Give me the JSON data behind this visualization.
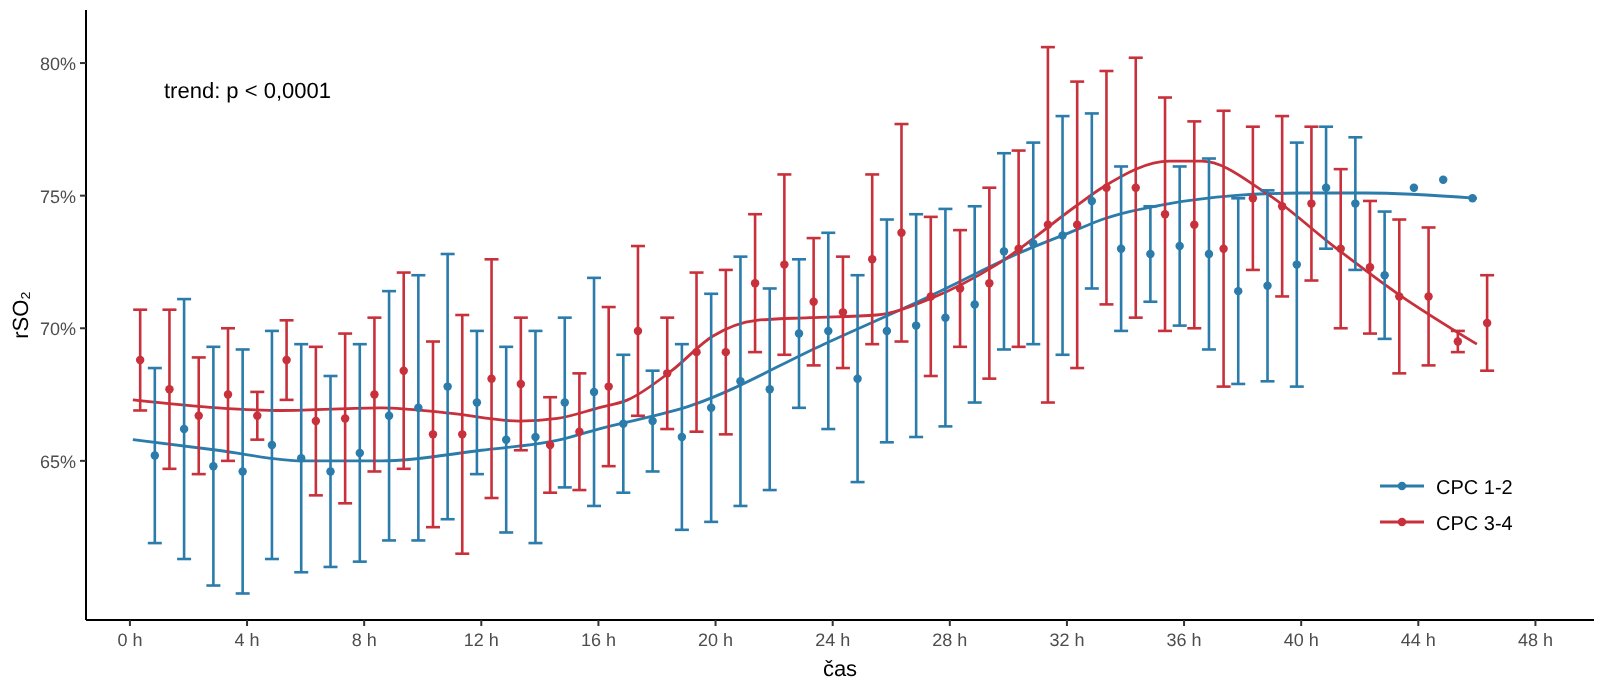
{
  "chart_data": {
    "type": "scatter",
    "xlabel": "čas",
    "ylabel": "rSO₂",
    "annotations": [
      "trend: p < 0,0001"
    ],
    "xlim": [
      -1.5,
      50
    ],
    "ylim": [
      59,
      82
    ],
    "xticks": [
      {
        "value": 0,
        "label": "0 h"
      },
      {
        "value": 4,
        "label": "4 h"
      },
      {
        "value": 8,
        "label": "8 h"
      },
      {
        "value": 12,
        "label": "12 h"
      },
      {
        "value": 16,
        "label": "16 h"
      },
      {
        "value": 20,
        "label": "20 h"
      },
      {
        "value": 24,
        "label": "24 h"
      },
      {
        "value": 28,
        "label": "28 h"
      },
      {
        "value": 32,
        "label": "32 h"
      },
      {
        "value": 36,
        "label": "36 h"
      },
      {
        "value": 40,
        "label": "40 h"
      },
      {
        "value": 44,
        "label": "44 h"
      },
      {
        "value": 48,
        "label": "48 h"
      }
    ],
    "yticks": [
      {
        "value": 65,
        "label": "65%"
      },
      {
        "value": 70,
        "label": "70%"
      },
      {
        "value": 75,
        "label": "75%"
      },
      {
        "value": 80,
        "label": "80%"
      }
    ],
    "grid": false,
    "legend": "bottom right",
    "marker": "circle",
    "series": [
      {
        "name": "CPC 1-2",
        "color": "#2b7bab",
        "x": [
          0.85,
          1.85,
          2.85,
          3.85,
          4.85,
          5.85,
          6.85,
          7.85,
          8.85,
          9.85,
          10.85,
          11.85,
          12.85,
          13.85,
          14.85,
          15.85,
          16.85,
          17.85,
          18.85,
          19.85,
          20.85,
          21.85,
          22.85,
          23.85,
          24.85,
          25.85,
          26.85,
          27.85,
          28.85,
          29.85,
          30.85,
          31.85,
          32.85,
          33.85,
          34.85,
          35.85,
          36.85,
          37.85,
          38.85,
          39.85,
          40.85,
          41.85,
          42.85,
          43.85,
          44.85,
          45.85
        ],
        "values": [
          65.2,
          66.2,
          64.8,
          64.6,
          65.6,
          65.1,
          64.6,
          65.3,
          66.7,
          67.0,
          67.8,
          67.2,
          65.8,
          65.9,
          67.2,
          67.6,
          66.4,
          66.5,
          65.9,
          67.0,
          68.0,
          67.7,
          69.8,
          69.9,
          68.1,
          69.9,
          70.1,
          70.4,
          70.9,
          72.9,
          73.2,
          73.5,
          74.8,
          73.0,
          72.8,
          73.1,
          72.8,
          71.4,
          71.6,
          72.4,
          75.3,
          74.7,
          72.0,
          75.3,
          75.6,
          74.9
        ],
        "errors": [
          3.3,
          4.9,
          4.5,
          4.6,
          4.3,
          4.3,
          3.6,
          4.1,
          4.7,
          5.0,
          5.0,
          2.7,
          3.5,
          4.0,
          3.2,
          4.3,
          2.6,
          1.9,
          3.5,
          4.3,
          4.7,
          3.8,
          2.8,
          3.7,
          3.9,
          4.2,
          4.2,
          4.1,
          3.7,
          3.7,
          3.8,
          4.5,
          3.3,
          3.1,
          1.8,
          3.0,
          3.6,
          3.5,
          3.6,
          4.6,
          2.3,
          2.5,
          2.4,
          null,
          null,
          null
        ]
      },
      {
        "name": "CPC 3-4",
        "color": "#c8313b",
        "x": [
          0.35,
          1.35,
          2.35,
          3.35,
          4.35,
          5.35,
          6.35,
          7.35,
          8.35,
          9.35,
          10.35,
          11.35,
          12.35,
          13.35,
          14.35,
          15.35,
          16.35,
          17.35,
          18.35,
          19.35,
          20.35,
          21.35,
          22.35,
          23.35,
          24.35,
          25.35,
          26.35,
          27.35,
          28.35,
          29.35,
          30.35,
          31.35,
          32.35,
          33.35,
          34.35,
          35.35,
          36.35,
          37.35,
          38.35,
          39.35,
          40.35,
          41.35,
          42.35,
          43.35,
          44.35,
          45.35,
          46.35
        ],
        "values": [
          68.8,
          67.7,
          66.7,
          67.5,
          66.7,
          68.8,
          66.5,
          66.6,
          67.5,
          68.4,
          66.0,
          66.0,
          68.1,
          67.9,
          65.6,
          66.1,
          67.8,
          69.9,
          68.3,
          69.1,
          69.1,
          71.7,
          72.4,
          71.0,
          70.6,
          72.6,
          73.6,
          71.2,
          71.5,
          71.7,
          73.0,
          73.9,
          73.9,
          75.3,
          75.3,
          74.3,
          73.9,
          73.0,
          74.9,
          74.6,
          74.7,
          73.0,
          72.3,
          71.2,
          71.2,
          69.5,
          70.2
        ],
        "errors": [
          1.9,
          3.0,
          2.2,
          2.5,
          0.9,
          1.5,
          2.8,
          3.2,
          2.9,
          3.7,
          3.5,
          4.5,
          4.5,
          2.5,
          1.8,
          2.2,
          3.0,
          3.2,
          2.1,
          3.0,
          3.1,
          2.6,
          3.4,
          2.4,
          2.1,
          3.2,
          4.1,
          3.0,
          2.2,
          3.6,
          3.7,
          6.7,
          5.4,
          4.4,
          4.9,
          4.4,
          3.9,
          5.2,
          2.7,
          3.4,
          2.9,
          3.0,
          2.5,
          2.9,
          2.6,
          0.4,
          1.8
        ]
      },
      {
        "type": "line",
        "marker": "none",
        "color": "#2b7bab",
        "x": [
          0.1,
          3,
          5.9,
          8.6,
          12,
          14.7,
          16,
          19.2,
          23.7,
          27.3,
          30.5,
          32.3,
          33.2,
          35.5,
          37.7,
          40,
          42.2,
          46
        ],
        "values": [
          65.8,
          65.4,
          65.0,
          65.0,
          65.4,
          65.8,
          66.2,
          67.1,
          69.4,
          71.2,
          72.9,
          73.7,
          74.1,
          74.7,
          75.0,
          75.1,
          75.1,
          74.9
        ]
      },
      {
        "type": "line",
        "marker": "none",
        "color": "#c8313b",
        "x": [
          0.1,
          3,
          5.2,
          8.6,
          10.9,
          13.3,
          14.6,
          16,
          17,
          18.5,
          19.9,
          21.4,
          23.2,
          25.5,
          27.3,
          29.6,
          32.3,
          33.2,
          35.5,
          36.6,
          38.8,
          41.1,
          43.3,
          46
        ],
        "values": [
          67.3,
          67.0,
          66.9,
          67.0,
          66.8,
          66.5,
          66.6,
          67.0,
          67.3,
          68.4,
          69.7,
          70.3,
          70.4,
          70.5,
          71.1,
          72.4,
          74.6,
          75.3,
          76.3,
          76.3,
          75.1,
          73.1,
          71.3,
          69.4
        ]
      }
    ]
  }
}
